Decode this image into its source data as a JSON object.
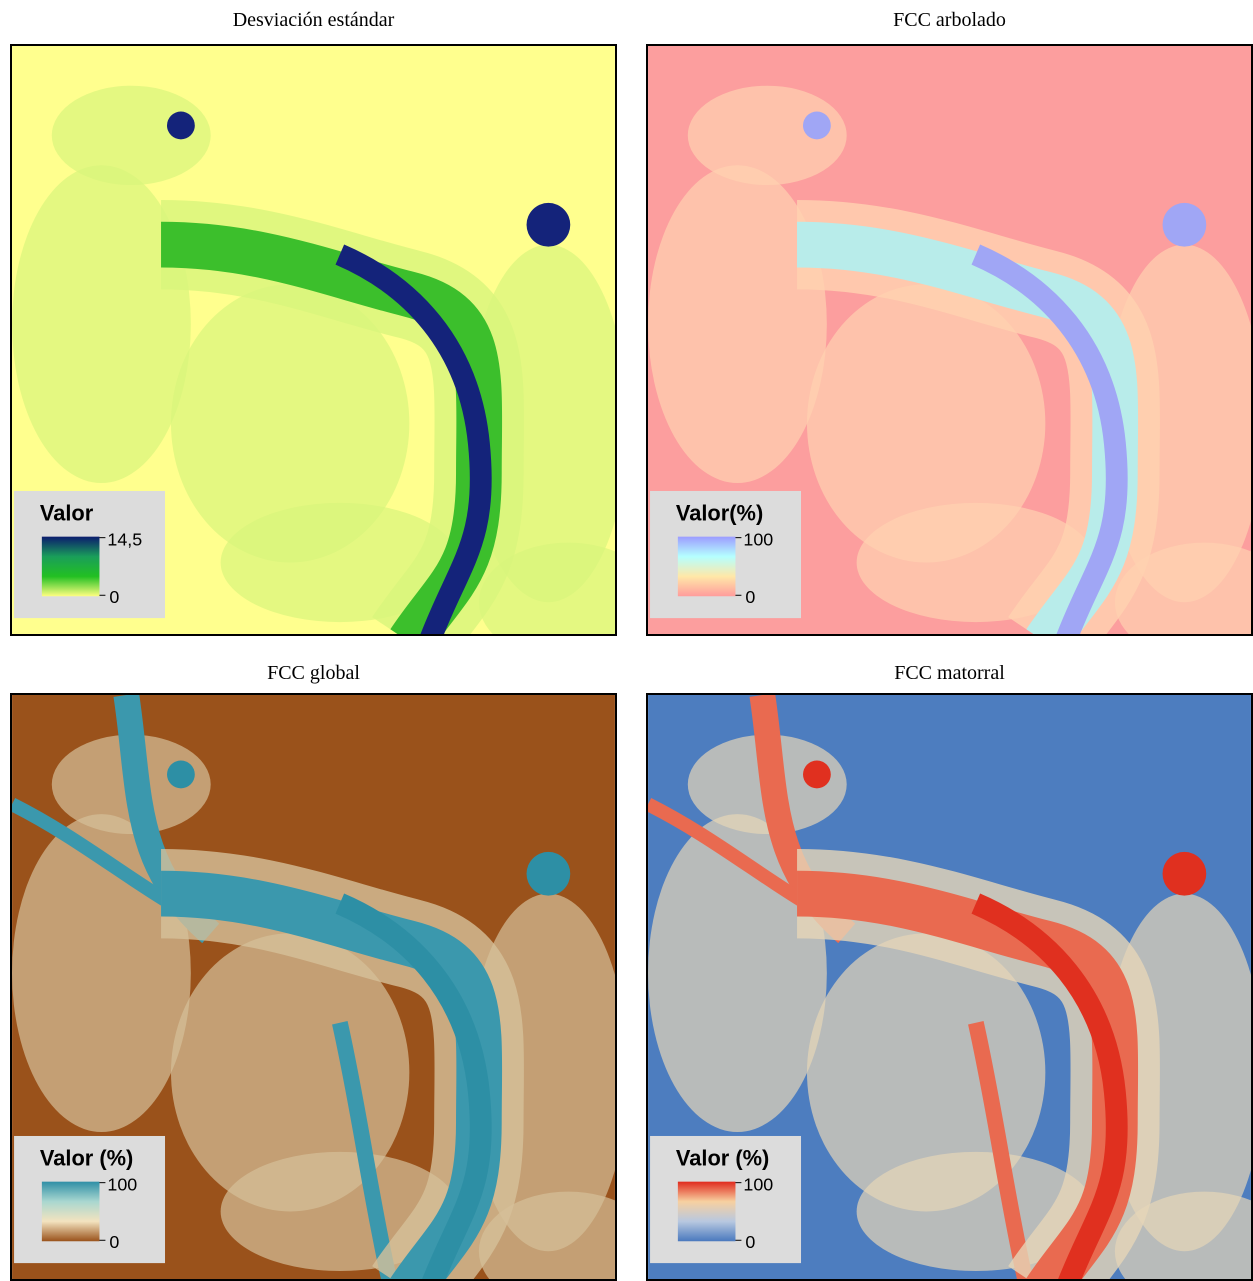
{
  "panels": [
    {
      "title": "Desviación estándar",
      "legend": {
        "title": "Valor",
        "max": "14,5",
        "min": "0"
      }
    },
    {
      "title": "FCC arbolado",
      "legend": {
        "title": "Valor(%)",
        "max": "100",
        "min": "0"
      }
    },
    {
      "title": "FCC global",
      "legend": {
        "title": "Valor (%)",
        "max": "100",
        "min": "0"
      }
    },
    {
      "title": "FCC matorral",
      "legend": {
        "title": "Valor (%)",
        "max": "100",
        "min": "0"
      }
    }
  ]
}
